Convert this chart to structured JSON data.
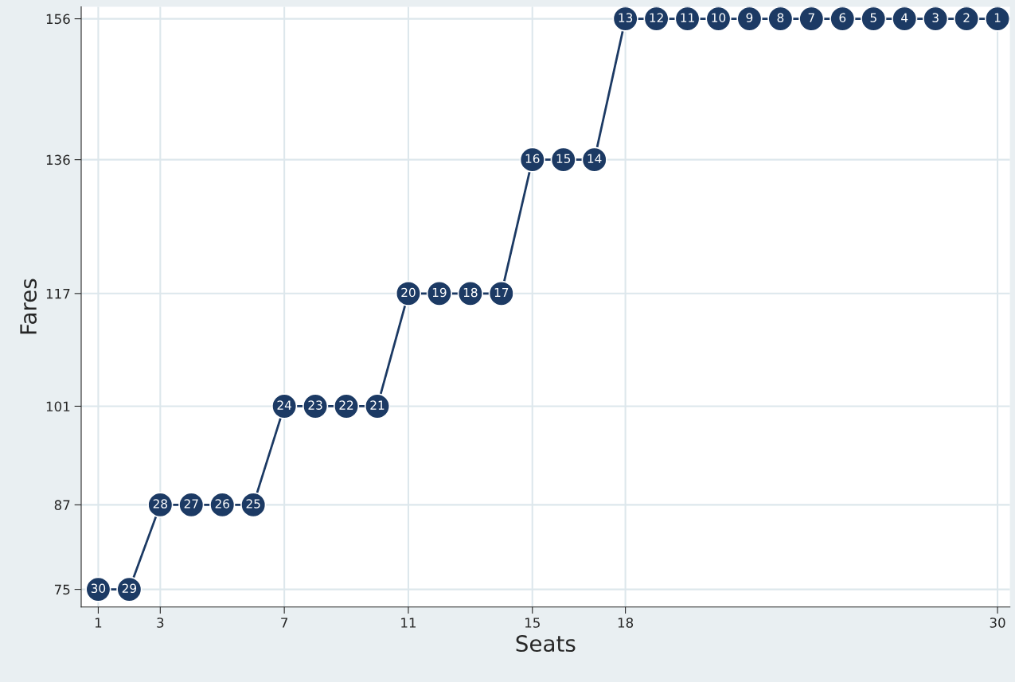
{
  "chart_data": {
    "type": "line",
    "xlabel": "Seats",
    "ylabel": "Fares",
    "x": [
      1,
      2,
      3,
      4,
      5,
      6,
      7,
      8,
      9,
      10,
      11,
      12,
      13,
      14,
      15,
      16,
      17,
      18,
      19,
      20,
      21,
      22,
      23,
      24,
      25,
      26,
      27,
      28,
      29,
      30
    ],
    "series": [
      {
        "color": "#1c3a64",
        "values": [
          75,
          75,
          87,
          87,
          87,
          87,
          101,
          101,
          101,
          101,
          117,
          117,
          117,
          117,
          136,
          136,
          136,
          156,
          156,
          156,
          156,
          156,
          156,
          156,
          156,
          156,
          156,
          156,
          156,
          156
        ]
      }
    ],
    "annotations": [
      {
        "text": "30",
        "x": 1,
        "y": 75
      },
      {
        "text": "29",
        "x": 2,
        "y": 75
      },
      {
        "text": "28",
        "x": 3,
        "y": 87
      },
      {
        "text": "27",
        "x": 4,
        "y": 87
      },
      {
        "text": "26",
        "x": 5,
        "y": 87
      },
      {
        "text": "25",
        "x": 6,
        "y": 87
      },
      {
        "text": "24",
        "x": 7,
        "y": 101
      },
      {
        "text": "23",
        "x": 8,
        "y": 101
      },
      {
        "text": "22",
        "x": 9,
        "y": 101
      },
      {
        "text": "21",
        "x": 10,
        "y": 101
      },
      {
        "text": "20",
        "x": 11,
        "y": 117
      },
      {
        "text": "19",
        "x": 12,
        "y": 117
      },
      {
        "text": "18",
        "x": 13,
        "y": 117
      },
      {
        "text": "17",
        "x": 14,
        "y": 117
      },
      {
        "text": "16",
        "x": 15,
        "y": 136
      },
      {
        "text": "15",
        "x": 16,
        "y": 136
      },
      {
        "text": "14",
        "x": 17,
        "y": 136
      },
      {
        "text": "13",
        "x": 18,
        "y": 156
      },
      {
        "text": "12",
        "x": 19,
        "y": 156
      },
      {
        "text": "11",
        "x": 20,
        "y": 156
      },
      {
        "text": "10",
        "x": 21,
        "y": 156
      },
      {
        "text": "9",
        "x": 22,
        "y": 156
      },
      {
        "text": "8",
        "x": 23,
        "y": 156
      },
      {
        "text": "7",
        "x": 24,
        "y": 156
      },
      {
        "text": "6",
        "x": 25,
        "y": 156
      },
      {
        "text": "5",
        "x": 26,
        "y": 156
      },
      {
        "text": "4",
        "x": 27,
        "y": 156
      },
      {
        "text": "3",
        "x": 28,
        "y": 156
      },
      {
        "text": "2",
        "x": 29,
        "y": 156
      },
      {
        "text": "1",
        "x": 30,
        "y": 156
      }
    ],
    "xlim": [
      0.45,
      30.4
    ],
    "ylim": [
      72.5,
      157.7
    ],
    "xticks": [
      1,
      3,
      7,
      11,
      15,
      18,
      30
    ],
    "yticks": [
      75,
      87,
      101,
      117,
      136,
      156
    ],
    "grid": true,
    "marker": "circle",
    "line_style": "solid"
  }
}
